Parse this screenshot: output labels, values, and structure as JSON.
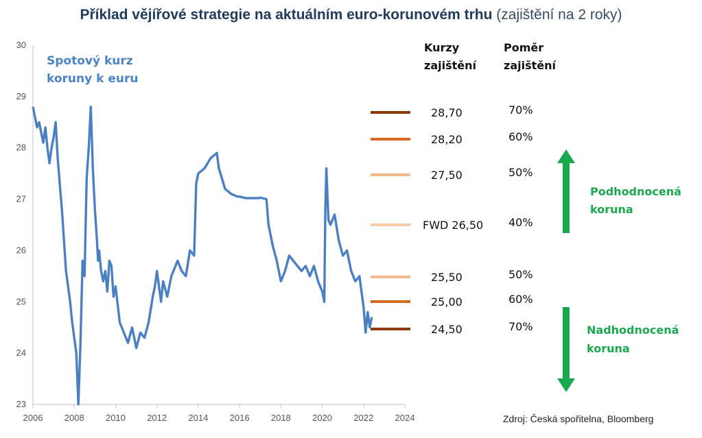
{
  "title": {
    "bold": "Příklad vějířové strategie na aktuálním euro-korunovém trhu",
    "light": "(zajištění na 2 roky)"
  },
  "source": "Zdroj: Česká spořitelna, Bloomberg",
  "chart_data": {
    "type": "line",
    "xlim": [
      2006,
      2024
    ],
    "ylim": [
      23,
      30
    ],
    "x_ticks": [
      "2006",
      "2008",
      "2010",
      "2012",
      "2014",
      "2016",
      "2018",
      "2020",
      "2022",
      "2024"
    ],
    "y_ticks": [
      "23",
      "24",
      "25",
      "26",
      "27",
      "28",
      "29",
      "30"
    ],
    "grid": false,
    "series": [
      {
        "name_lines": [
          "Spotový kurz",
          "koruny k euru"
        ],
        "color": "#4a7fc1",
        "x": [
          2006.0,
          2006.1,
          2006.2,
          2006.3,
          2006.4,
          2006.5,
          2006.6,
          2006.7,
          2006.8,
          2006.9,
          2007.0,
          2007.1,
          2007.2,
          2007.3,
          2007.4,
          2007.5,
          2007.6,
          2007.7,
          2007.8,
          2007.9,
          2008.0,
          2008.1,
          2008.2,
          2008.3,
          2008.4,
          2008.5,
          2008.55,
          2008.6,
          2008.7,
          2008.8,
          2008.9,
          2009.0,
          2009.1,
          2009.15,
          2009.2,
          2009.3,
          2009.4,
          2009.5,
          2009.6,
          2009.7,
          2009.8,
          2009.9,
          2010.0,
          2010.2,
          2010.4,
          2010.6,
          2010.8,
          2011.0,
          2011.2,
          2011.4,
          2011.6,
          2011.8,
          2011.9,
          2012.0,
          2012.2,
          2012.3,
          2012.5,
          2012.7,
          2012.9,
          2013.0,
          2013.2,
          2013.4,
          2013.6,
          2013.8,
          2013.85,
          2013.9,
          2014.0,
          2014.3,
          2014.6,
          2014.9,
          2015.0,
          2015.3,
          2015.6,
          2015.9,
          2016.0,
          2016.3,
          2016.6,
          2016.9,
          2017.0,
          2017.3,
          2017.4,
          2017.6,
          2017.8,
          2018.0,
          2018.2,
          2018.4,
          2018.6,
          2018.8,
          2019.0,
          2019.2,
          2019.4,
          2019.6,
          2019.8,
          2020.0,
          2020.1,
          2020.15,
          2020.2,
          2020.3,
          2020.4,
          2020.6,
          2020.8,
          2021.0,
          2021.2,
          2021.4,
          2021.6,
          2021.8,
          2022.0,
          2022.1,
          2022.15,
          2022.2,
          2022.3,
          2022.4
        ],
        "y": [
          28.8,
          28.6,
          28.4,
          28.5,
          28.3,
          28.1,
          28.4,
          28.0,
          27.7,
          28.0,
          28.2,
          28.5,
          27.8,
          27.3,
          26.8,
          26.2,
          25.6,
          25.3,
          25.0,
          24.6,
          24.3,
          24.0,
          23.0,
          24.2,
          25.8,
          25.5,
          26.5,
          27.4,
          28.0,
          28.8,
          27.6,
          26.8,
          26.2,
          25.8,
          26.0,
          25.6,
          25.4,
          25.6,
          25.2,
          25.8,
          25.7,
          25.1,
          25.3,
          24.6,
          24.4,
          24.2,
          24.5,
          24.1,
          24.4,
          24.3,
          24.6,
          25.1,
          25.3,
          25.6,
          25.0,
          25.4,
          25.1,
          25.5,
          25.7,
          25.8,
          25.6,
          25.5,
          26.0,
          25.9,
          26.6,
          27.3,
          27.5,
          27.6,
          27.8,
          27.9,
          27.6,
          27.2,
          27.1,
          27.05,
          27.05,
          27.02,
          27.02,
          27.02,
          27.03,
          27.0,
          26.5,
          26.1,
          25.8,
          25.4,
          25.6,
          25.9,
          25.8,
          25.7,
          25.6,
          25.7,
          25.5,
          25.7,
          25.4,
          25.2,
          25.0,
          26.8,
          27.6,
          26.6,
          26.5,
          26.7,
          26.2,
          25.9,
          26.0,
          25.6,
          25.4,
          25.5,
          24.9,
          24.4,
          24.6,
          24.8,
          24.5,
          24.7
        ]
      }
    ],
    "columns": {
      "rates_header": [
        "Kurzy",
        "zajištění"
      ],
      "ratio_header": [
        "Poměr",
        "zajištění"
      ]
    },
    "hedge_levels": [
      {
        "rate": "28,70",
        "ratio": "70%",
        "color": "#8b3a0e"
      },
      {
        "rate": "28,20",
        "ratio": "60%",
        "color": "#d46a1e"
      },
      {
        "rate": "27,50",
        "ratio": "50%",
        "color": "#f2b98a"
      },
      {
        "rate": "FWD 26,50",
        "ratio": "40%",
        "color": "#f5cba8"
      },
      {
        "rate": "25,50",
        "ratio": "50%",
        "color": "#f2b98a"
      },
      {
        "rate": "25,00",
        "ratio": "60%",
        "color": "#d46a1e"
      },
      {
        "rate": "24,50",
        "ratio": "70%",
        "color": "#8b3a0e"
      }
    ],
    "annotations": [
      {
        "lines": [
          "Podhodnocená",
          "koruna"
        ],
        "arrow": "up",
        "color": "#1aa84f"
      },
      {
        "lines": [
          "Nadhodnocená",
          "koruna"
        ],
        "arrow": "down",
        "color": "#1aa84f"
      }
    ]
  }
}
